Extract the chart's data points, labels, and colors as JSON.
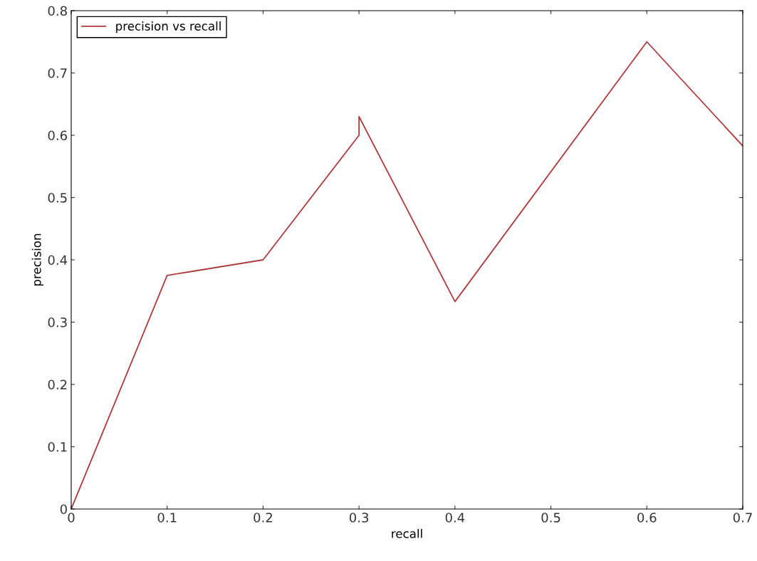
{
  "chart_data": {
    "type": "line",
    "xlabel": "recall",
    "ylabel": "precision",
    "x": [
      0,
      0.1,
      0.2,
      0.3,
      0.3,
      0.4,
      0.6,
      0.7
    ],
    "series": [
      {
        "name": "precision vs recall",
        "color": "#b03a3a",
        "values": [
          0,
          0.375,
          0.4,
          0.6,
          0.63,
          0.333,
          0.75,
          0.583
        ]
      }
    ],
    "xlim": [
      0,
      0.7
    ],
    "xticks": [
      0,
      0.1,
      0.2,
      0.3,
      0.4,
      0.5,
      0.6,
      0.7
    ],
    "ylim": [
      0,
      0.8
    ],
    "yticks": [
      0,
      0.1,
      0.2,
      0.3,
      0.4,
      0.5,
      0.6,
      0.7,
      0.8
    ],
    "grid": false,
    "legend": "top left"
  }
}
